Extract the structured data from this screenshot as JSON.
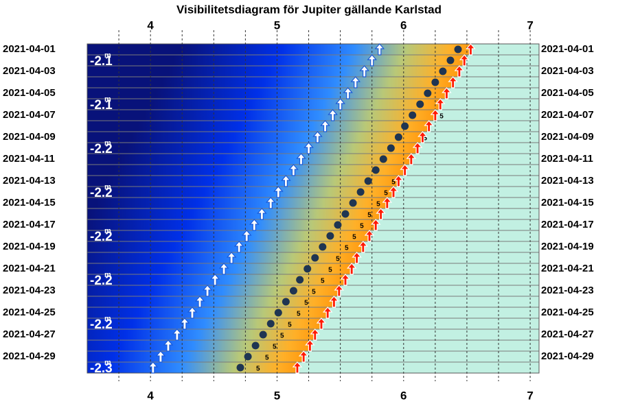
{
  "chart_data": {
    "type": "visibility",
    "title": "Visibilitetsdiagram för Jupiter gällande Karlstad",
    "categories": [
      "2021-04-01",
      null,
      "2021-04-03",
      null,
      "2021-04-05",
      null,
      "2021-04-07",
      null,
      "2021-04-09",
      null,
      "2021-04-11",
      null,
      "2021-04-13",
      null,
      "2021-04-15",
      null,
      "2021-04-17",
      null,
      "2021-04-19",
      null,
      "2021-04-21",
      null,
      "2021-04-23",
      null,
      "2021-04-25",
      null,
      "2021-04-27",
      null,
      "2021-04-29",
      null
    ],
    "xlim": [
      3.5,
      7.07
    ],
    "xticks": [
      4,
      5,
      6,
      7
    ],
    "minor_xticks": [
      3.75,
      4,
      4.25,
      4.5,
      4.75,
      5,
      5.25,
      5.5,
      5.75,
      6,
      6.25,
      6.5,
      6.75,
      7
    ],
    "series": [
      {
        "name": "rise",
        "color": "#ffffff",
        "values": [
          5.81,
          5.75,
          5.69,
          5.62,
          5.56,
          5.5,
          5.44,
          5.38,
          5.32,
          5.25,
          5.19,
          5.13,
          5.07,
          5.01,
          4.95,
          4.88,
          4.82,
          4.76,
          4.7,
          4.64,
          4.58,
          4.51,
          4.45,
          4.39,
          4.33,
          4.27,
          4.21,
          4.14,
          4.08,
          4.02
        ]
      },
      {
        "name": "position",
        "color": "#1f3552",
        "values": [
          6.43,
          6.37,
          6.31,
          6.25,
          6.19,
          6.13,
          6.07,
          6.01,
          5.96,
          5.9,
          5.84,
          5.78,
          5.72,
          5.66,
          5.6,
          5.54,
          5.48,
          5.42,
          5.36,
          5.3,
          5.24,
          5.18,
          5.13,
          5.07,
          5.01,
          4.95,
          4.89,
          4.83,
          4.77,
          4.71
        ]
      },
      {
        "name": "sunrise",
        "color": "#ff1a00",
        "values": [
          6.53,
          6.48,
          6.44,
          6.39,
          6.34,
          6.29,
          6.25,
          6.2,
          6.15,
          6.11,
          6.06,
          6.01,
          5.96,
          5.92,
          5.87,
          5.82,
          5.78,
          5.73,
          5.68,
          5.63,
          5.59,
          5.54,
          5.49,
          5.45,
          5.4,
          5.35,
          5.3,
          5.26,
          5.21,
          5.16
        ]
      },
      {
        "name": "altitude",
        "color": "#000000",
        "label": "5",
        "values": [
          null,
          null,
          null,
          null,
          null,
          null,
          6.3,
          null,
          6.17,
          null,
          null,
          null,
          5.92,
          5.86,
          5.8,
          5.73,
          5.67,
          5.61,
          5.55,
          5.48,
          5.42,
          5.36,
          5.29,
          5.23,
          5.17,
          5.1,
          5.04,
          4.98,
          4.92,
          4.85
        ]
      }
    ],
    "magnitudes": [
      "-2.1",
      "-2.1",
      "-2.2",
      "-2.2",
      "-2.2",
      "-2.2",
      "-2.2",
      "-2.3"
    ],
    "magnitude_unit": "m"
  }
}
